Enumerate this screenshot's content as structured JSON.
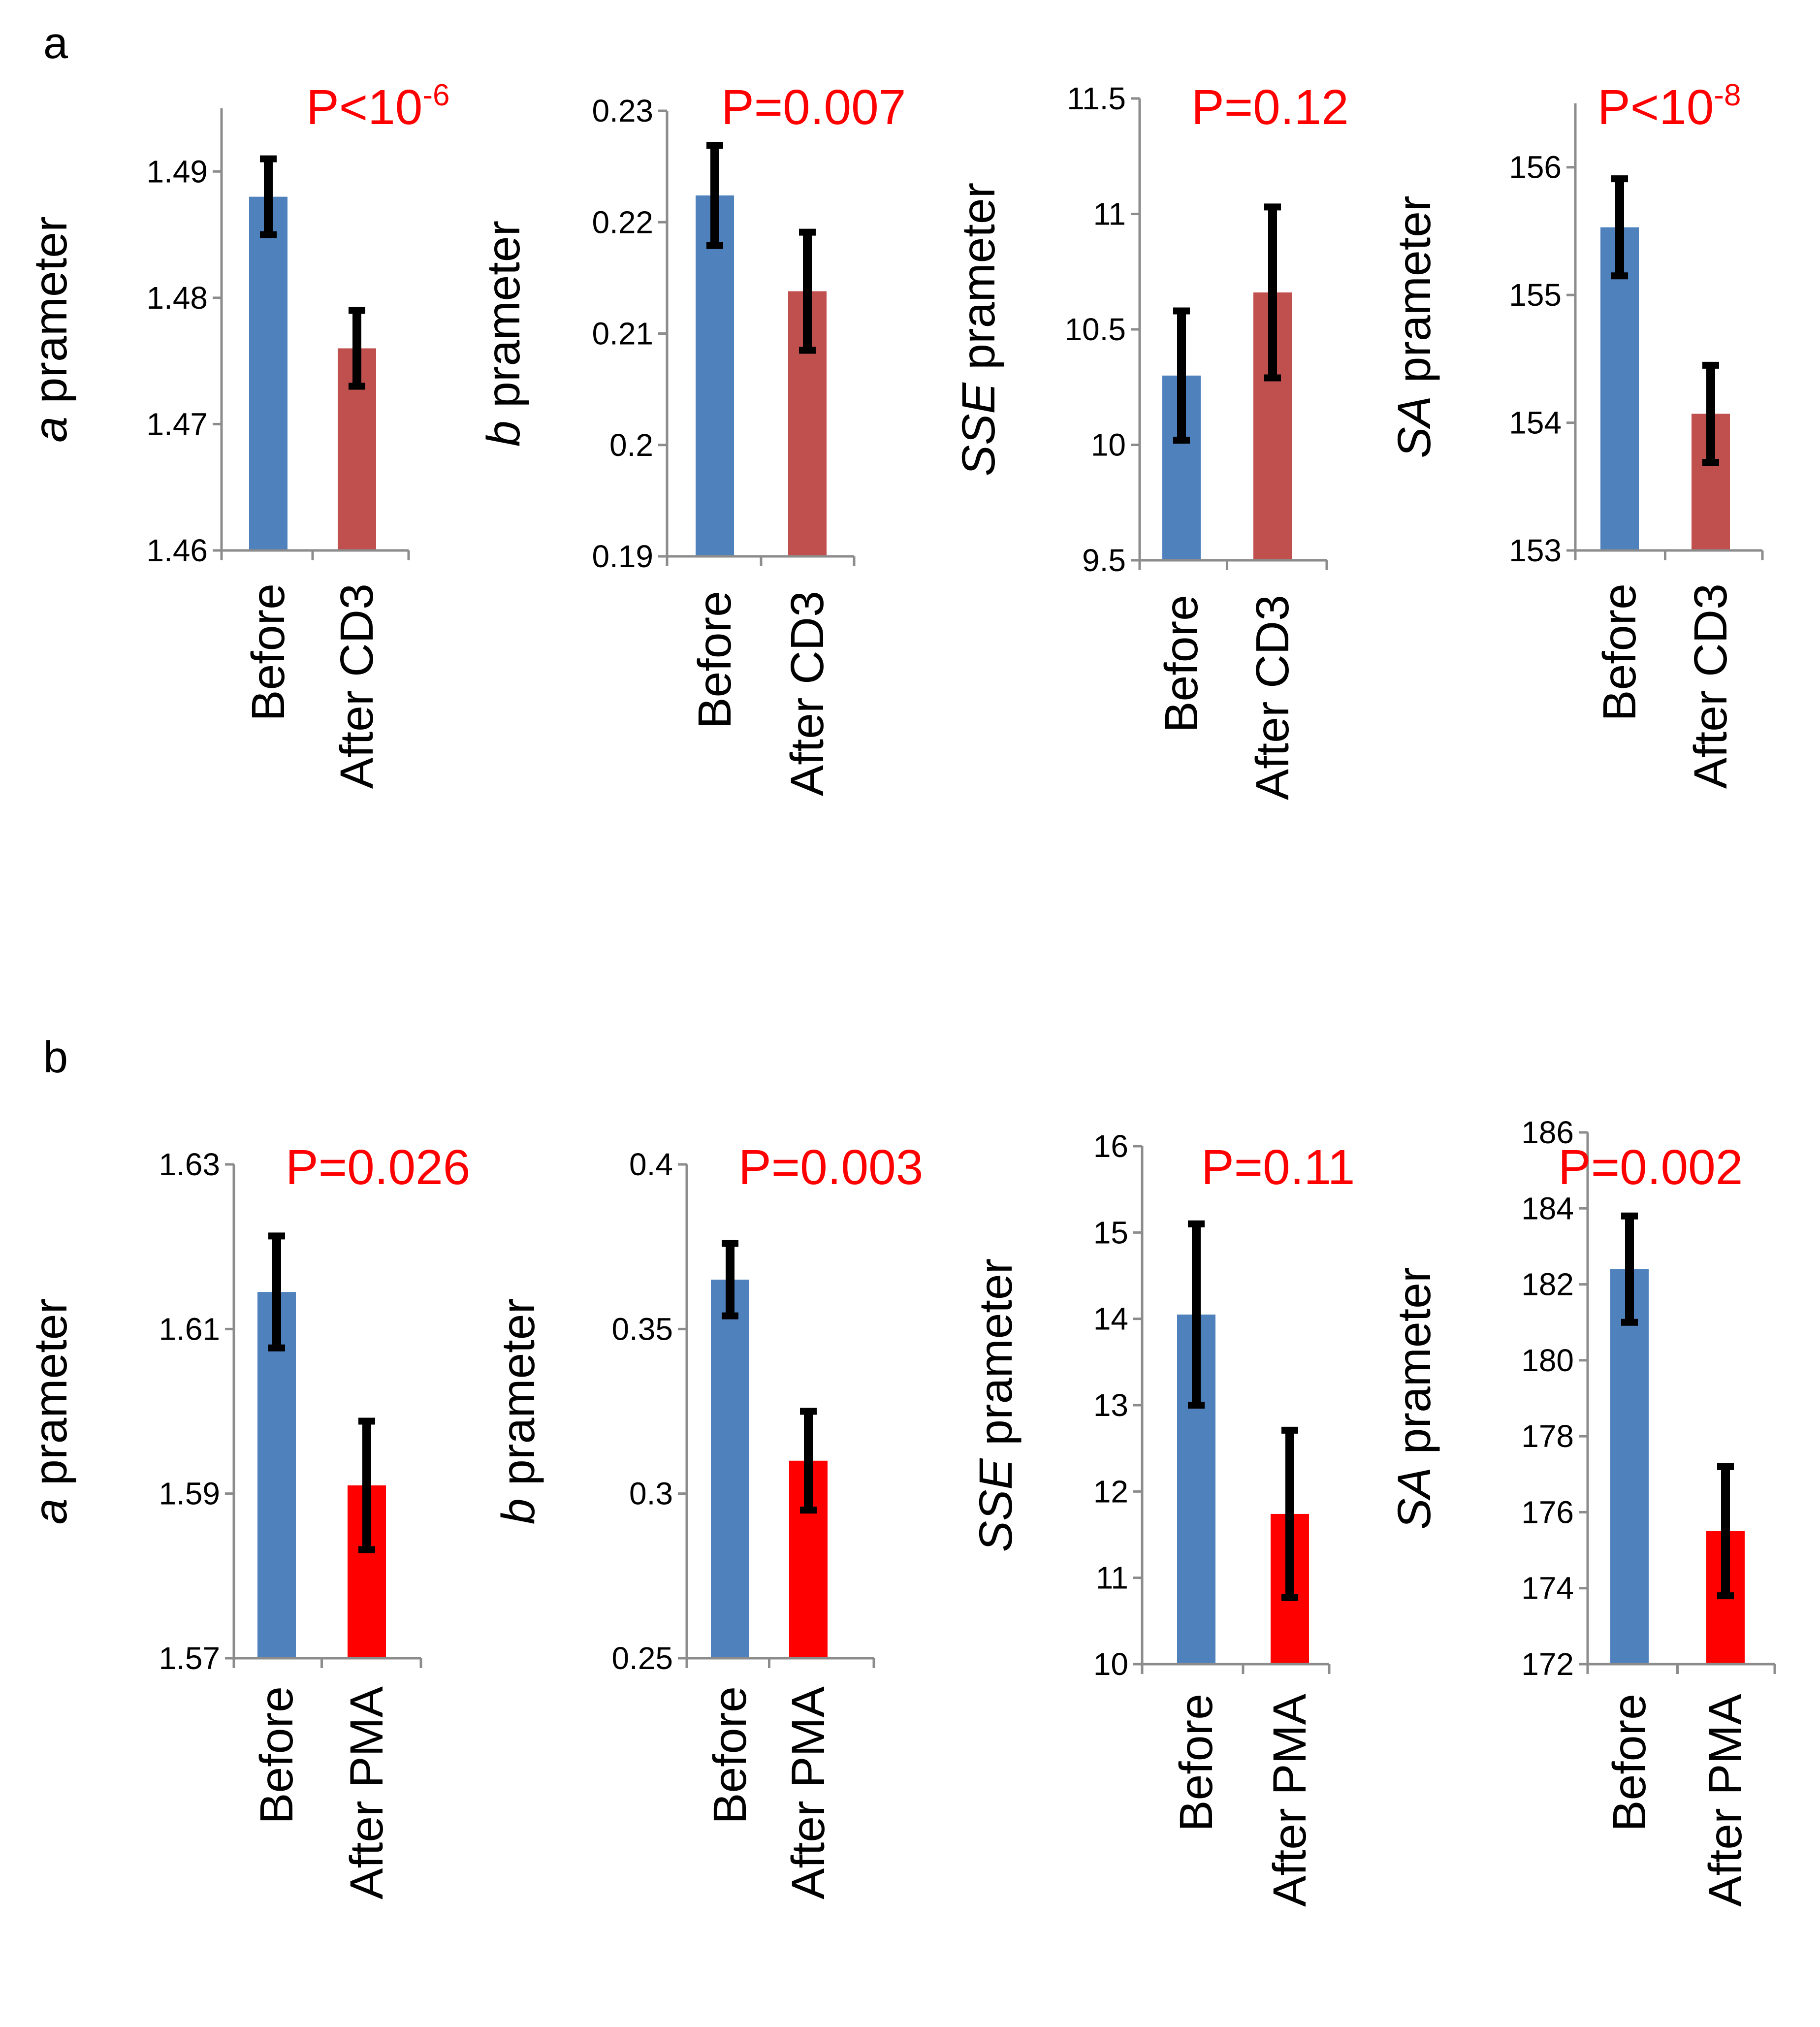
{
  "panels": [
    {
      "letter": "a"
    },
    {
      "letter": "b"
    }
  ],
  "colors": {
    "before": "#4f81bd",
    "after_cd3": "#c0504d",
    "after_pma": "#ff0000",
    "pvalue": "#ff0000",
    "error_bar": "#000000",
    "axis": "#8c8c8c"
  },
  "chart_data": [
    {
      "type": "bar",
      "panel": "a",
      "ylabel_italic": "a",
      "ylabel_rest": " prameter",
      "categories": [
        "Before",
        "After CD3"
      ],
      "values": [
        1.488,
        1.476
      ],
      "errors": [
        0.003,
        0.003
      ],
      "ylim": [
        1.46,
        1.495
      ],
      "yticks": [
        "1.46",
        "1.47",
        "1.48",
        "1.49"
      ],
      "ytick_values": [
        1.46,
        1.47,
        1.48,
        1.49
      ],
      "pvalue": {
        "text": "P<10",
        "sup": "-6"
      },
      "bar_colors": [
        "#4f81bd",
        "#c0504d"
      ]
    },
    {
      "type": "bar",
      "panel": "a",
      "ylabel_italic": "b",
      "ylabel_rest": " prameter",
      "categories": [
        "Before",
        "After CD3"
      ],
      "values": [
        0.2224,
        0.2138
      ],
      "errors": [
        0.0045,
        0.0053
      ],
      "ylim": [
        0.19,
        0.23
      ],
      "yticks": [
        "0.19",
        "0.2",
        "0.21",
        "0.22",
        "0.23"
      ],
      "ytick_values": [
        0.19,
        0.2,
        0.21,
        0.22,
        0.23
      ],
      "pvalue": {
        "text": "P=0.007",
        "sup": ""
      },
      "bar_colors": [
        "#4f81bd",
        "#c0504d"
      ]
    },
    {
      "type": "bar",
      "panel": "a",
      "ylabel_italic": "SSE",
      "ylabel_rest": "  prameter",
      "categories": [
        "Before",
        "After CD3"
      ],
      "values": [
        10.3,
        10.66
      ],
      "errors": [
        0.28,
        0.37
      ],
      "ylim": [
        9.5,
        11.5
      ],
      "yticks": [
        "9.5",
        "10",
        "10.5",
        "11",
        "11.5"
      ],
      "ytick_values": [
        9.5,
        10,
        10.5,
        11,
        11.5
      ],
      "pvalue": {
        "text": "P=0.12",
        "sup": ""
      },
      "bar_colors": [
        "#4f81bd",
        "#c0504d"
      ]
    },
    {
      "type": "bar",
      "panel": "a",
      "ylabel_italic": "SA",
      "ylabel_rest": "  prameter",
      "categories": [
        "Before",
        "After CD3"
      ],
      "values": [
        155.53,
        154.07
      ],
      "errors": [
        0.38,
        0.38
      ],
      "ylim": [
        153,
        156.5
      ],
      "yticks": [
        "153",
        "154",
        "155",
        "156"
      ],
      "ytick_values": [
        153,
        154,
        155,
        156
      ],
      "pvalue": {
        "text": "P<10",
        "sup": "-8"
      },
      "bar_colors": [
        "#4f81bd",
        "#c0504d"
      ]
    },
    {
      "type": "bar",
      "panel": "b",
      "ylabel_italic": "a",
      "ylabel_rest": " prameter",
      "categories": [
        "Before",
        "After PMA"
      ],
      "values": [
        1.6145,
        1.591
      ],
      "errors": [
        0.0068,
        0.0078
      ],
      "ylim": [
        1.57,
        1.63
      ],
      "yticks": [
        "1.57",
        "1.59",
        "1.61",
        "1.63"
      ],
      "ytick_values": [
        1.57,
        1.59,
        1.61,
        1.63
      ],
      "pvalue": {
        "text": "P=0.026",
        "sup": ""
      },
      "bar_colors": [
        "#4f81bd",
        "#ff0000"
      ]
    },
    {
      "type": "bar",
      "panel": "b",
      "ylabel_italic": "b",
      "ylabel_rest": " prameter",
      "categories": [
        "Before",
        "After PMA"
      ],
      "values": [
        0.365,
        0.31
      ],
      "errors": [
        0.011,
        0.015
      ],
      "ylim": [
        0.25,
        0.4
      ],
      "yticks": [
        "0.25",
        "0.3",
        "0.35",
        "0.4"
      ],
      "ytick_values": [
        0.25,
        0.3,
        0.35,
        0.4
      ],
      "pvalue": {
        "text": "P=0.003",
        "sup": ""
      },
      "bar_colors": [
        "#4f81bd",
        "#ff0000"
      ]
    },
    {
      "type": "bar",
      "panel": "b",
      "ylabel_italic": "SSE",
      "ylabel_rest": "  prameter",
      "categories": [
        "Before",
        "After PMA"
      ],
      "values": [
        14.05,
        11.74
      ],
      "errors": [
        1.05,
        0.97
      ],
      "ylim": [
        10,
        16
      ],
      "yticks": [
        "10",
        "11",
        "12",
        "13",
        "14",
        "15",
        "16"
      ],
      "ytick_values": [
        10,
        11,
        12,
        13,
        14,
        15,
        16
      ],
      "pvalue": {
        "text": "P=0.11",
        "sup": ""
      },
      "bar_colors": [
        "#4f81bd",
        "#ff0000"
      ]
    },
    {
      "type": "bar",
      "panel": "b",
      "ylabel_italic": "SA",
      "ylabel_rest": "  prameter",
      "categories": [
        "Before",
        "After PMA"
      ],
      "values": [
        182.4,
        175.5
      ],
      "errors": [
        1.4,
        1.7
      ],
      "ylim": [
        172,
        186
      ],
      "yticks": [
        "172",
        "174",
        "176",
        "178",
        "180",
        "182",
        "184",
        "186"
      ],
      "ytick_values": [
        172,
        174,
        176,
        178,
        180,
        182,
        184,
        186
      ],
      "pvalue": {
        "text": "P=0.002",
        "sup": ""
      },
      "bar_colors": [
        "#4f81bd",
        "#ff0000"
      ]
    }
  ]
}
